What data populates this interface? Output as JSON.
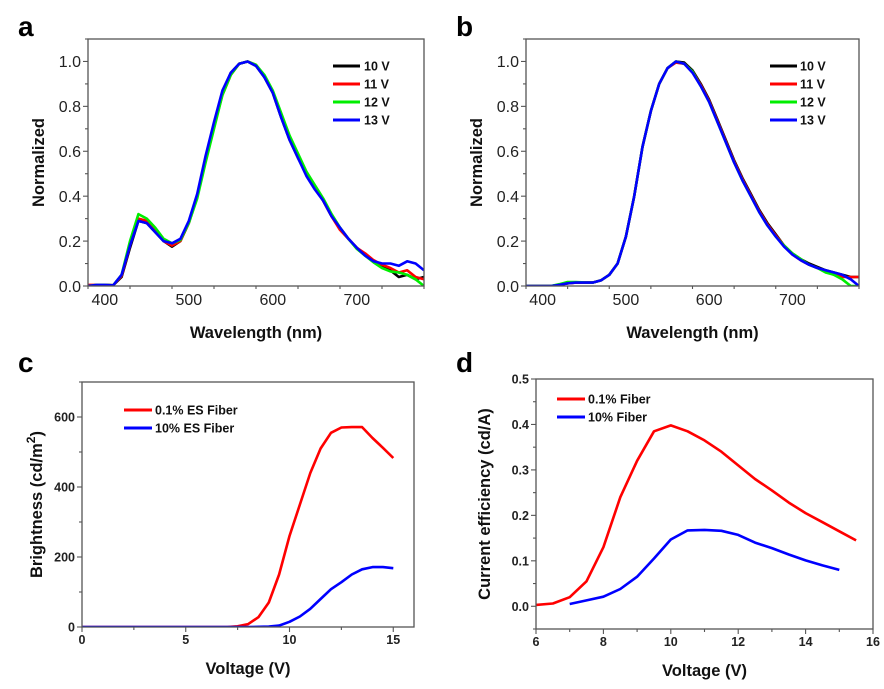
{
  "colors": {
    "black": "#000000",
    "red": "#ff0000",
    "green": "#00ee00",
    "blue": "#0000ff",
    "frame": "#555555"
  },
  "chart_data": [
    {
      "panel": "a",
      "type": "line",
      "xlabel": "Wavelength (nm)",
      "ylabel": "Normalized",
      "xlim": [
        380,
        780
      ],
      "ylim": [
        0,
        1.1
      ],
      "xticks": [
        400,
        500,
        600,
        700
      ],
      "xtick_labels": [
        "400",
        "500",
        "600",
        "700"
      ],
      "yticks": [
        0,
        0.2,
        0.4,
        0.6,
        0.8,
        1.0
      ],
      "ytick_labels": [
        "0.0",
        "0.2",
        "0.4",
        "0.6",
        "0.8",
        "1.0"
      ],
      "legend_position": "top-right",
      "x": [
        380,
        390,
        400,
        410,
        420,
        430,
        440,
        450,
        460,
        470,
        480,
        490,
        500,
        510,
        520,
        530,
        540,
        550,
        560,
        570,
        580,
        590,
        600,
        610,
        620,
        630,
        640,
        650,
        660,
        670,
        680,
        690,
        700,
        710,
        720,
        730,
        740,
        750,
        760,
        770,
        780
      ],
      "series": [
        {
          "name": "10 V",
          "color": "#000000",
          "values": [
            0,
            0.005,
            0.005,
            0.003,
            0.04,
            0.17,
            0.29,
            0.28,
            0.24,
            0.2,
            0.175,
            0.2,
            0.28,
            0.4,
            0.57,
            0.72,
            0.86,
            0.95,
            0.99,
            1.0,
            0.98,
            0.93,
            0.86,
            0.75,
            0.65,
            0.57,
            0.5,
            0.44,
            0.38,
            0.31,
            0.26,
            0.21,
            0.17,
            0.14,
            0.11,
            0.09,
            0.07,
            0.04,
            0.05,
            0.03,
            0.04
          ]
        },
        {
          "name": "11 V",
          "color": "#ff0000",
          "values": [
            0.005,
            0.005,
            0.005,
            0.003,
            0.045,
            0.18,
            0.3,
            0.29,
            0.25,
            0.2,
            0.18,
            0.2,
            0.28,
            0.4,
            0.56,
            0.71,
            0.85,
            0.94,
            0.99,
            1.0,
            0.985,
            0.935,
            0.865,
            0.76,
            0.66,
            0.58,
            0.5,
            0.44,
            0.38,
            0.31,
            0.25,
            0.21,
            0.17,
            0.145,
            0.115,
            0.095,
            0.08,
            0.06,
            0.07,
            0.04,
            0.03
          ]
        },
        {
          "name": "12 V",
          "color": "#00ee00",
          "values": [
            0,
            0.005,
            0.005,
            0.003,
            0.05,
            0.2,
            0.32,
            0.3,
            0.26,
            0.21,
            0.19,
            0.205,
            0.28,
            0.39,
            0.55,
            0.7,
            0.85,
            0.94,
            0.99,
            1.0,
            0.985,
            0.94,
            0.87,
            0.77,
            0.67,
            0.59,
            0.51,
            0.45,
            0.39,
            0.32,
            0.26,
            0.21,
            0.165,
            0.135,
            0.105,
            0.08,
            0.065,
            0.06,
            0.05,
            0.03,
            0.0
          ]
        },
        {
          "name": "13 V",
          "color": "#0000ff",
          "values": [
            0,
            0.005,
            0.005,
            0.003,
            0.05,
            0.18,
            0.29,
            0.28,
            0.24,
            0.2,
            0.19,
            0.21,
            0.29,
            0.41,
            0.58,
            0.73,
            0.87,
            0.95,
            0.99,
            1.0,
            0.98,
            0.93,
            0.86,
            0.75,
            0.65,
            0.57,
            0.49,
            0.43,
            0.38,
            0.31,
            0.26,
            0.21,
            0.17,
            0.135,
            0.11,
            0.1,
            0.1,
            0.09,
            0.11,
            0.1,
            0.07
          ]
        }
      ]
    },
    {
      "panel": "b",
      "type": "line",
      "xlabel": "Wavelength (nm)",
      "ylabel": "Normalized",
      "xlim": [
        380,
        780
      ],
      "ylim": [
        0,
        1.1
      ],
      "xticks": [
        400,
        500,
        600,
        700
      ],
      "xtick_labels": [
        "400",
        "500",
        "600",
        "700"
      ],
      "yticks": [
        0,
        0.2,
        0.4,
        0.6,
        0.8,
        1.0
      ],
      "ytick_labels": [
        "0.0",
        "0.2",
        "0.4",
        "0.6",
        "0.8",
        "1.0"
      ],
      "legend_position": "top-right",
      "x": [
        380,
        390,
        400,
        410,
        420,
        430,
        440,
        450,
        460,
        470,
        480,
        490,
        500,
        510,
        520,
        530,
        540,
        550,
        560,
        570,
        580,
        590,
        600,
        610,
        620,
        630,
        640,
        650,
        660,
        670,
        680,
        690,
        700,
        710,
        720,
        730,
        740,
        750,
        760,
        770,
        780
      ],
      "series": [
        {
          "name": "10 V",
          "color": "#000000",
          "values": [
            0,
            0,
            0,
            0,
            0.005,
            0.012,
            0.015,
            0.015,
            0.015,
            0.025,
            0.05,
            0.1,
            0.22,
            0.4,
            0.62,
            0.78,
            0.9,
            0.97,
            1.0,
            0.995,
            0.96,
            0.9,
            0.83,
            0.74,
            0.65,
            0.56,
            0.48,
            0.41,
            0.34,
            0.28,
            0.23,
            0.18,
            0.145,
            0.12,
            0.1,
            0.085,
            0.07,
            0.06,
            0.05,
            0.04,
            0.04
          ]
        },
        {
          "name": "11 V",
          "color": "#ff0000",
          "values": [
            0,
            0,
            0,
            0,
            0.005,
            0.012,
            0.015,
            0.015,
            0.015,
            0.025,
            0.05,
            0.1,
            0.22,
            0.4,
            0.62,
            0.78,
            0.9,
            0.97,
            0.995,
            0.99,
            0.955,
            0.895,
            0.825,
            0.735,
            0.645,
            0.555,
            0.475,
            0.405,
            0.335,
            0.275,
            0.225,
            0.18,
            0.14,
            0.115,
            0.095,
            0.08,
            0.065,
            0.05,
            0.04,
            0.04,
            0.04
          ]
        },
        {
          "name": "12 V",
          "color": "#00ee00",
          "values": [
            0,
            0,
            0,
            0,
            0.008,
            0.018,
            0.018,
            0.016,
            0.015,
            0.025,
            0.05,
            0.1,
            0.22,
            0.4,
            0.62,
            0.78,
            0.9,
            0.97,
            1.0,
            0.99,
            0.955,
            0.89,
            0.82,
            0.73,
            0.64,
            0.55,
            0.47,
            0.4,
            0.33,
            0.27,
            0.22,
            0.18,
            0.145,
            0.12,
            0.095,
            0.08,
            0.06,
            0.05,
            0.03,
            0.0,
            0.0
          ]
        },
        {
          "name": "13 V",
          "color": "#0000ff",
          "values": [
            0,
            0,
            0,
            0,
            0.005,
            0.012,
            0.015,
            0.015,
            0.015,
            0.025,
            0.05,
            0.1,
            0.22,
            0.4,
            0.62,
            0.78,
            0.9,
            0.97,
            1.0,
            0.99,
            0.95,
            0.89,
            0.82,
            0.73,
            0.64,
            0.55,
            0.47,
            0.4,
            0.33,
            0.27,
            0.22,
            0.175,
            0.14,
            0.115,
            0.095,
            0.08,
            0.07,
            0.06,
            0.05,
            0.03,
            0.0
          ]
        }
      ]
    },
    {
      "panel": "c",
      "type": "line",
      "xlabel": "Voltage (V)",
      "ylabel": "Brightness (cd/m",
      "ylabel_superscript": "2",
      "ylabel_suffix": ")",
      "xlim": [
        0,
        16
      ],
      "ylim": [
        0,
        700
      ],
      "xticks": [
        0,
        5,
        10,
        15
      ],
      "xtick_labels": [
        "0",
        "5",
        "10",
        "15"
      ],
      "yticks": [
        0,
        200,
        400,
        600
      ],
      "ytick_labels": [
        "0",
        "200",
        "400",
        "600"
      ],
      "legend_position": "top-left",
      "series": [
        {
          "name": "0.1% ES Fiber",
          "color": "#ff0000",
          "x": [
            0,
            1,
            2,
            3,
            4,
            5,
            6,
            7,
            7.5,
            8,
            8.5,
            9,
            9.5,
            10,
            10.5,
            11,
            11.5,
            12,
            12.5,
            13,
            13.5,
            14,
            14.5,
            15
          ],
          "values": [
            0,
            0,
            0,
            0,
            0,
            0,
            0,
            0,
            2,
            8,
            28,
            70,
            150,
            260,
            350,
            440,
            510,
            555,
            570,
            571,
            571,
            540,
            512,
            483
          ]
        },
        {
          "name": "10% ES Fiber",
          "color": "#0000ff",
          "x": [
            0,
            1,
            2,
            3,
            4,
            5,
            6,
            7,
            8,
            9,
            9.5,
            10,
            10.5,
            11,
            11.5,
            12,
            12.5,
            13,
            13.5,
            14,
            14.5,
            15
          ],
          "values": [
            0,
            0,
            0,
            0,
            0,
            0,
            0,
            0,
            0,
            1,
            4,
            15,
            30,
            52,
            80,
            108,
            128,
            150,
            165,
            171,
            171,
            168
          ]
        }
      ]
    },
    {
      "panel": "d",
      "type": "line",
      "xlabel": "Voltage (V)",
      "ylabel": "Current efficiency (cd/A)",
      "xlim": [
        6,
        16
      ],
      "ylim": [
        -0.05,
        0.5
      ],
      "xticks": [
        6,
        8,
        10,
        12,
        14,
        16
      ],
      "xtick_labels": [
        "6",
        "8",
        "10",
        "12",
        "14",
        "16"
      ],
      "yticks": [
        0,
        0.1,
        0.2,
        0.3,
        0.4,
        0.5
      ],
      "ytick_labels": [
        "0.0",
        "0.1",
        "0.2",
        "0.3",
        "0.4",
        "0.5"
      ],
      "legend_position": "top-left",
      "series": [
        {
          "name": "0.1% Fiber",
          "color": "#ff0000",
          "x": [
            6,
            6.5,
            7,
            7.5,
            8,
            8.5,
            9,
            9.5,
            10,
            10.5,
            11,
            11.5,
            12,
            12.5,
            13,
            13.5,
            14,
            14.5,
            15,
            15.5
          ],
          "values": [
            0.003,
            0.006,
            0.02,
            0.055,
            0.13,
            0.24,
            0.32,
            0.385,
            0.398,
            0.385,
            0.365,
            0.34,
            0.31,
            0.28,
            0.255,
            0.228,
            0.205,
            0.185,
            0.165,
            0.145
          ]
        },
        {
          "name": "10% Fiber",
          "color": "#0000ff",
          "x": [
            7,
            7.5,
            8,
            8.5,
            9,
            9.5,
            10,
            10.5,
            11,
            11.5,
            12,
            12.5,
            13,
            13.5,
            14,
            14.5,
            15
          ],
          "values": [
            0.005,
            0.013,
            0.021,
            0.038,
            0.065,
            0.105,
            0.147,
            0.167,
            0.168,
            0.166,
            0.157,
            0.14,
            0.128,
            0.114,
            0.101,
            0.09,
            0.08
          ]
        }
      ]
    }
  ]
}
